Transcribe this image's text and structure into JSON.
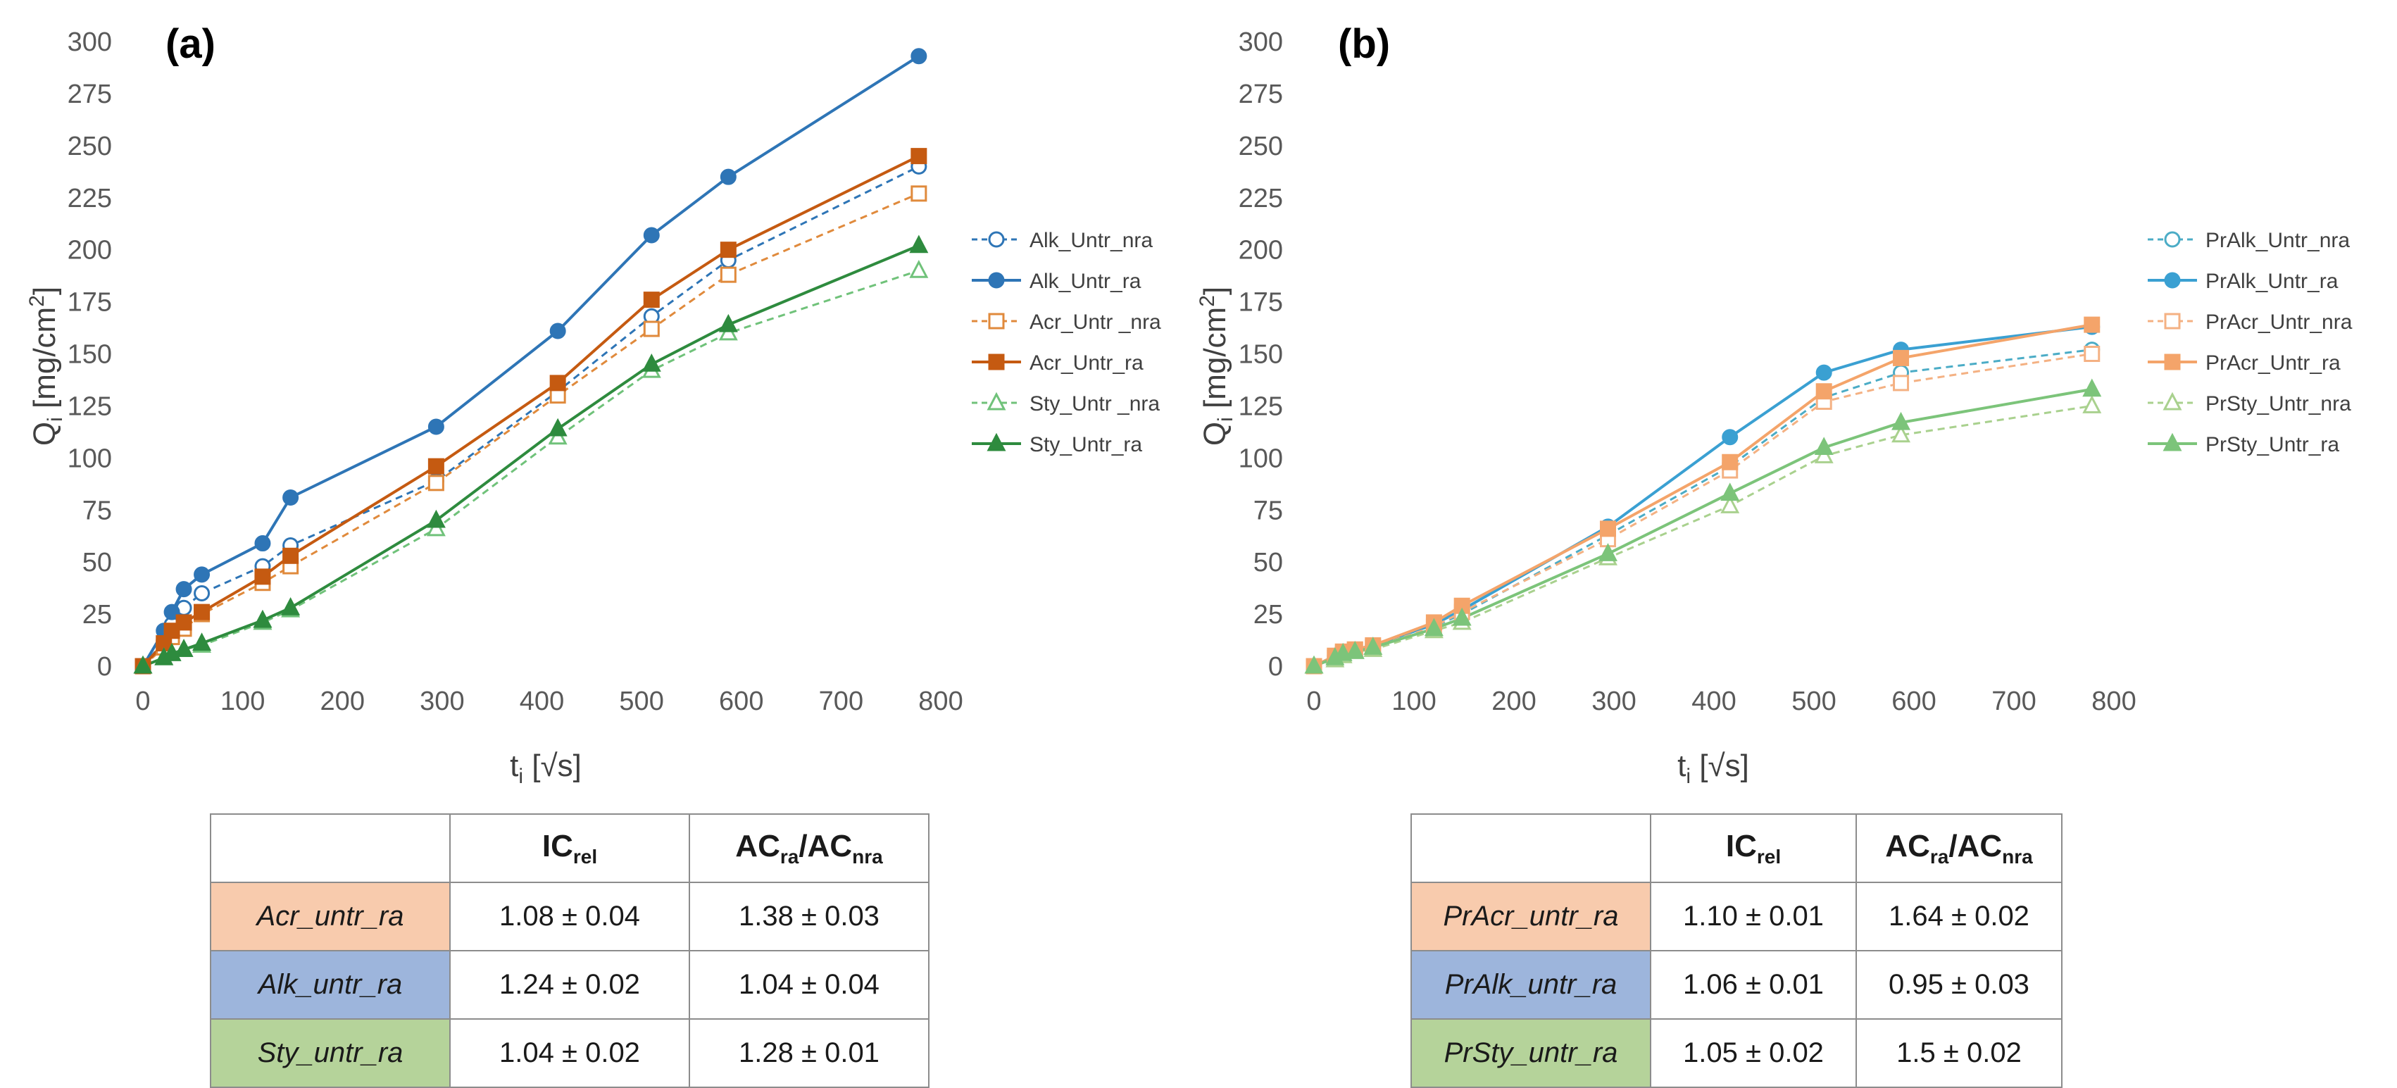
{
  "chart_data": [
    {
      "type": "line",
      "panel_label": "(a)",
      "ylabel_main": "Q",
      "ylabel_sub": "i",
      "ylabel_rest": " [mg/cm",
      "ylabel_sup": "2",
      "ylabel_end": "]",
      "xlabel_main": "t",
      "xlabel_sub": "i",
      "xlabel_rest": " [√s]",
      "xlim": [
        0,
        800
      ],
      "ylim": [
        0,
        300
      ],
      "xticks": [
        "0",
        "100",
        "200",
        "300",
        "400",
        "500",
        "600",
        "700",
        "800"
      ],
      "yticks": [
        "0",
        "25",
        "50",
        "75",
        "100",
        "125",
        "150",
        "175",
        "200",
        "225",
        "250",
        "275",
        "300"
      ],
      "series": [
        {
          "name": "Alk_Untr_nra",
          "color": "#2e75b6",
          "marker": "circle",
          "filled": false,
          "dashed": true,
          "x": [
            0,
            21,
            29,
            41,
            59,
            120,
            148,
            294,
            416,
            510,
            587,
            778
          ],
          "y": [
            0,
            12,
            20,
            28,
            35,
            48,
            58,
            89,
            132,
            168,
            195,
            240
          ]
        },
        {
          "name": "Alk_Untr_ra",
          "color": "#2e75b6",
          "marker": "circle",
          "filled": true,
          "dashed": false,
          "x": [
            0,
            21,
            29,
            41,
            59,
            120,
            148,
            294,
            416,
            510,
            587,
            778
          ],
          "y": [
            0,
            17,
            26,
            37,
            44,
            59,
            81,
            115,
            161,
            207,
            235,
            293
          ]
        },
        {
          "name": "Acr_Untr _nra",
          "color": "#e08a3c",
          "marker": "square",
          "filled": false,
          "dashed": true,
          "x": [
            0,
            21,
            29,
            41,
            59,
            120,
            148,
            294,
            416,
            510,
            587,
            778
          ],
          "y": [
            0,
            9,
            14,
            18,
            25,
            40,
            48,
            88,
            130,
            162,
            188,
            227
          ]
        },
        {
          "name": "Acr_Untr_ra",
          "color": "#c55a11",
          "marker": "square",
          "filled": true,
          "dashed": false,
          "x": [
            0,
            21,
            29,
            41,
            59,
            120,
            148,
            294,
            416,
            510,
            587,
            778
          ],
          "y": [
            0,
            11,
            17,
            21,
            26,
            43,
            53,
            96,
            136,
            176,
            200,
            245
          ]
        },
        {
          "name": "Sty_Untr _nra",
          "color": "#70c27a",
          "marker": "triangle",
          "filled": false,
          "dashed": true,
          "x": [
            0,
            21,
            29,
            41,
            59,
            120,
            148,
            294,
            416,
            510,
            587,
            778
          ],
          "y": [
            0,
            4,
            6,
            8,
            10,
            21,
            27,
            66,
            110,
            142,
            160,
            190
          ]
        },
        {
          "name": "Sty_Untr_ra",
          "color": "#2e8b3e",
          "marker": "triangle",
          "filled": true,
          "dashed": false,
          "x": [
            0,
            21,
            29,
            41,
            59,
            120,
            148,
            294,
            416,
            510,
            587,
            778
          ],
          "y": [
            0,
            4,
            6,
            8,
            11,
            22,
            28,
            70,
            114,
            145,
            164,
            202
          ]
        }
      ],
      "legend_position": "right"
    },
    {
      "type": "line",
      "panel_label": "(b)",
      "ylabel_main": "Q",
      "ylabel_sub": "i",
      "ylabel_rest": " [mg/cm",
      "ylabel_sup": "2",
      "ylabel_end": "]",
      "xlabel_main": "t",
      "xlabel_sub": "i",
      "xlabel_rest": " [√s]",
      "xlim": [
        0,
        800
      ],
      "ylim": [
        0,
        300
      ],
      "xticks": [
        "0",
        "100",
        "200",
        "300",
        "400",
        "500",
        "600",
        "700",
        "800"
      ],
      "yticks": [
        "0",
        "25",
        "50",
        "75",
        "100",
        "125",
        "150",
        "175",
        "200",
        "225",
        "250",
        "275",
        "300"
      ],
      "series": [
        {
          "name": "PrAlk_Untr_nra",
          "color": "#4bacc6",
          "marker": "circle",
          "filled": false,
          "dashed": true,
          "x": [
            0,
            21,
            29,
            41,
            59,
            120,
            148,
            294,
            416,
            510,
            587,
            778
          ],
          "y": [
            0,
            4,
            6,
            8,
            9,
            19,
            25,
            63,
            96,
            129,
            141,
            152
          ]
        },
        {
          "name": "PrAlk_Untr_ra",
          "color": "#3aa0d2",
          "marker": "circle",
          "filled": true,
          "dashed": false,
          "x": [
            0,
            21,
            29,
            41,
            59,
            120,
            148,
            294,
            416,
            510,
            587,
            778
          ],
          "y": [
            0,
            5,
            7,
            8,
            10,
            20,
            27,
            67,
            110,
            141,
            152,
            163
          ]
        },
        {
          "name": "PrAcr_Untr_nra",
          "color": "#f4b183",
          "marker": "square",
          "filled": false,
          "dashed": true,
          "x": [
            0,
            21,
            29,
            41,
            59,
            120,
            148,
            294,
            416,
            510,
            587,
            778
          ],
          "y": [
            0,
            4,
            6,
            8,
            9,
            19,
            26,
            61,
            94,
            127,
            136,
            150
          ]
        },
        {
          "name": "PrAcr_Untr_ra",
          "color": "#f4a46a",
          "marker": "square",
          "filled": true,
          "dashed": false,
          "x": [
            0,
            21,
            29,
            41,
            59,
            120,
            148,
            294,
            416,
            510,
            587,
            778
          ],
          "y": [
            0,
            5,
            7,
            8,
            10,
            21,
            29,
            66,
            98,
            132,
            148,
            164
          ]
        },
        {
          "name": "PrSty_Untr_nra",
          "color": "#a9d18e",
          "marker": "triangle",
          "filled": false,
          "dashed": true,
          "x": [
            0,
            21,
            29,
            41,
            59,
            120,
            148,
            294,
            416,
            510,
            587,
            778
          ],
          "y": [
            0,
            3,
            5,
            7,
            8,
            17,
            21,
            52,
            77,
            101,
            111,
            125
          ]
        },
        {
          "name": "PrSty_Untr_ra",
          "color": "#7cc47a",
          "marker": "triangle",
          "filled": true,
          "dashed": false,
          "x": [
            0,
            21,
            29,
            41,
            59,
            120,
            148,
            294,
            416,
            510,
            587,
            778
          ],
          "y": [
            0,
            4,
            6,
            7,
            9,
            18,
            23,
            54,
            83,
            105,
            117,
            133
          ]
        }
      ],
      "legend_position": "right"
    }
  ],
  "tables": [
    {
      "header": {
        "col1_main": "IC",
        "col1_sub": "rel",
        "col2_a": "AC",
        "col2_a_sub": "ra",
        "col2_sep": "/AC",
        "col2_b_sub": "nra"
      },
      "rows": [
        {
          "name": "Acr_untr_ra",
          "ic": "1.08 ± 0.04",
          "ac": "1.38 ± 0.03"
        },
        {
          "name": "Alk_untr_ra",
          "ic": "1.24 ± 0.02",
          "ac": "1.04 ± 0.04"
        },
        {
          "name": "Sty_untr_ra",
          "ic": "1.04 ± 0.02",
          "ac": "1.28 ± 0.01"
        }
      ]
    },
    {
      "header": {
        "col1_main": "IC",
        "col1_sub": "rel",
        "col2_a": "AC",
        "col2_a_sub": "ra",
        "col2_sep": "/AC",
        "col2_b_sub": "nra"
      },
      "rows": [
        {
          "name": "PrAcr_untr_ra",
          "ic": "1.10 ± 0.01",
          "ac": "1.64 ± 0.02"
        },
        {
          "name": "PrAlk_untr_ra",
          "ic": "1.06 ± 0.01",
          "ac": "0.95 ± 0.03"
        },
        {
          "name": "PrSty_untr_ra",
          "ic": "1.05 ± 0.02",
          "ac": "1.5 ± 0.02"
        }
      ]
    }
  ]
}
